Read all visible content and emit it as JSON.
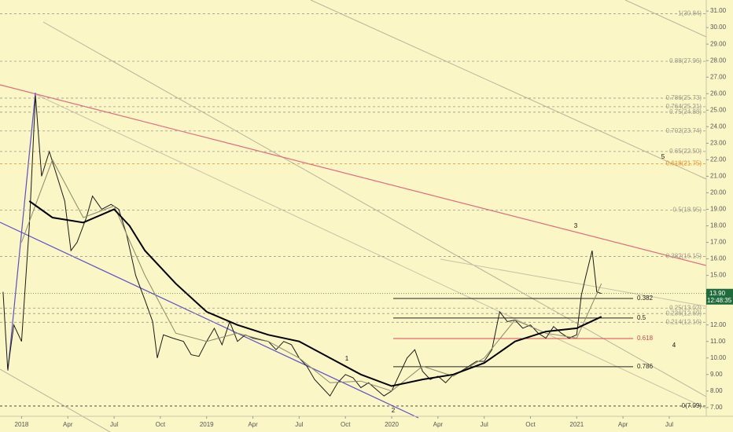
{
  "chart_data": {
    "type": "line",
    "xlim": [
      -1.4,
      44.4
    ],
    "ylim": [
      6.47,
      31.67
    ],
    "xticks": [
      {
        "value": 0,
        "label": "2018"
      },
      {
        "value": 3,
        "label": "Apr"
      },
      {
        "value": 6,
        "label": "Jul"
      },
      {
        "value": 9,
        "label": "Oct"
      },
      {
        "value": 12,
        "label": "2019"
      },
      {
        "value": 15,
        "label": "Apr"
      },
      {
        "value": 18,
        "label": "Jul"
      },
      {
        "value": 21,
        "label": "Oct"
      },
      {
        "value": 24,
        "label": "2020"
      },
      {
        "value": 27,
        "label": "Apr"
      },
      {
        "value": 30,
        "label": "Jul"
      },
      {
        "value": 33,
        "label": "Oct"
      },
      {
        "value": 36,
        "label": "2021"
      },
      {
        "value": 39,
        "label": "Apr"
      },
      {
        "value": 42,
        "label": "Jul"
      }
    ],
    "yticks": [
      {
        "value": 7,
        "label": "7.00"
      },
      {
        "value": 8,
        "label": "8.00"
      },
      {
        "value": 9,
        "label": "9.00"
      },
      {
        "value": 10,
        "label": "10.00"
      },
      {
        "value": 11,
        "label": "11.00"
      },
      {
        "value": 12,
        "label": "12.00"
      },
      {
        "value": 15,
        "label": "15.00"
      },
      {
        "value": 16,
        "label": "16.00"
      },
      {
        "value": 17,
        "label": "17.00"
      },
      {
        "value": 18,
        "label": "18.00"
      },
      {
        "value": 19,
        "label": "19.00"
      },
      {
        "value": 20,
        "label": "20.00"
      },
      {
        "value": 21,
        "label": "21.00"
      },
      {
        "value": 22,
        "label": "22.00"
      },
      {
        "value": 23,
        "label": "23.00"
      },
      {
        "value": 24,
        "label": "24.00"
      },
      {
        "value": 25,
        "label": "25.00"
      },
      {
        "value": 26,
        "label": "26.00"
      },
      {
        "value": 27,
        "label": "27.00"
      },
      {
        "value": 28,
        "label": "28.00"
      },
      {
        "value": 29,
        "label": "29.00"
      },
      {
        "value": 30,
        "label": "30.00"
      },
      {
        "value": 31,
        "label": "31.00"
      }
    ],
    "series": [
      {
        "color": "#1a1a1a",
        "x": [
          -1.2,
          -0.9,
          -0.5,
          0,
          0.5,
          0.9,
          1.3,
          1.8,
          2.3,
          2.8,
          3.2,
          3.6,
          4.2,
          4.6,
          5.2,
          5.8,
          6.3,
          6.8,
          7.4,
          8,
          8.5,
          8.8,
          9.2,
          9.8,
          10.5,
          11,
          11.5,
          12,
          12.5,
          13,
          13.5,
          14,
          14.5,
          15,
          16,
          16.5,
          17,
          17.5,
          18,
          18.5,
          19,
          19.5,
          20,
          20.5,
          21,
          21.5,
          22,
          22.5,
          23,
          23.5,
          24,
          24.5,
          25,
          25.5,
          26,
          26.5,
          27,
          27.5,
          28,
          28.5,
          29,
          29.5,
          30,
          30.5,
          31,
          31.5,
          32,
          32.5,
          33,
          33.5,
          34,
          34.5,
          35,
          35.5,
          36,
          36.3,
          36.6,
          37,
          37.3,
          37.6
        ],
        "values": [
          14,
          9.3,
          12,
          11,
          18,
          25.9,
          21,
          22.5,
          21,
          19.5,
          16.5,
          17,
          18.5,
          19.8,
          19,
          19.3,
          19,
          17.5,
          15,
          13.5,
          12.2,
          10,
          11.4,
          11.2,
          11,
          10.2,
          10.1,
          11,
          11.8,
          10.8,
          12.2,
          11,
          11.4,
          11.2,
          11,
          10.5,
          11,
          10.8,
          10,
          9.5,
          8.7,
          8.2,
          7.7,
          8.5,
          9,
          8.8,
          8.2,
          8.5,
          8.1,
          7.7,
          8,
          9,
          10,
          10.5,
          9.2,
          8.7,
          8.9,
          8.5,
          9,
          9.2,
          9.5,
          9.8,
          9.8,
          10.5,
          12.8,
          12.2,
          12.3,
          11.8,
          12,
          11.5,
          11.2,
          11.9,
          11.5,
          11.2,
          11.4,
          13.8,
          15,
          16.5,
          14,
          13.9
        ]
      },
      {
        "color": "#8a8a6a",
        "x": [
          0,
          2,
          4,
          6,
          8,
          10,
          12,
          14,
          16,
          18,
          20,
          22,
          24,
          26,
          28,
          30,
          32,
          34,
          36,
          37.6
        ],
        "values": [
          17,
          22,
          18.5,
          19.2,
          15,
          11.5,
          11,
          11.5,
          11,
          10,
          8.5,
          8.6,
          8,
          9.5,
          8.9,
          10,
          12.3,
          11.5,
          11.2,
          14.5
        ]
      },
      {
        "color": "#000000",
        "x": [
          0.5,
          2,
          4,
          6,
          7,
          8,
          10,
          12,
          14,
          16,
          18,
          20,
          22,
          24,
          26,
          28,
          30,
          32,
          34,
          36,
          37.6
        ],
        "values": [
          19.5,
          18.5,
          18.2,
          19,
          18,
          16.5,
          14.5,
          12.8,
          12,
          11.4,
          11,
          10,
          9,
          8.3,
          8.7,
          9,
          9.7,
          11,
          11.6,
          11.8,
          12.5
        ]
      }
    ],
    "fib_levels": [
      {
        "value": 30.84,
        "label": "1(30.84)",
        "color": "#9a9a8a"
      },
      {
        "value": 27.96,
        "label": "0.88(27.96)",
        "color": "#9a9a8a"
      },
      {
        "value": 25.73,
        "label": "0.786(25.73)",
        "color": "#9a9a8a"
      },
      {
        "value": 25.21,
        "label": "0.764(25.21)",
        "color": "#9a9a8a"
      },
      {
        "value": 24.88,
        "label": "0.75(24.88)",
        "color": "#9a9a8a"
      },
      {
        "value": 23.74,
        "label": "0.702(23.74)",
        "color": "#9a9a8a"
      },
      {
        "value": 22.5,
        "label": "0.65(22.50)",
        "color": "#9a9a8a"
      },
      {
        "value": 21.75,
        "label": "0.618(21.75)",
        "color": "#f08c2a"
      },
      {
        "value": 18.95,
        "label": "0.5(18.95)",
        "color": "#9a9a8a"
      },
      {
        "value": 16.15,
        "label": "0.382(16.15)",
        "color": "#9a9a8a"
      },
      {
        "value": 13.02,
        "label": "0.25(13.02)",
        "color": "#9a9a8a"
      },
      {
        "value": 12.69,
        "label": "0.236(12.69)",
        "color": "#9a9a8a"
      },
      {
        "value": 12.16,
        "label": "0.214(12.16)",
        "color": "#9a9a8a"
      },
      {
        "value": 7.09,
        "label": "0(7.09)",
        "color": "#333333"
      }
    ],
    "levels": [
      {
        "value": 13.6,
        "label": "0.382",
        "color": "#222222"
      },
      {
        "value": 12.42,
        "label": "0.5",
        "color": "#222222"
      },
      {
        "value": 11.18,
        "label": "0.618",
        "color": "#e0405a"
      },
      {
        "value": 9.47,
        "label": "0.786",
        "color": "#222222"
      }
    ],
    "waves": [
      "1",
      "2",
      "3",
      "4",
      "5"
    ],
    "last": {
      "value": 13.9,
      "label": "13.90",
      "time": "12:48:35"
    }
  }
}
